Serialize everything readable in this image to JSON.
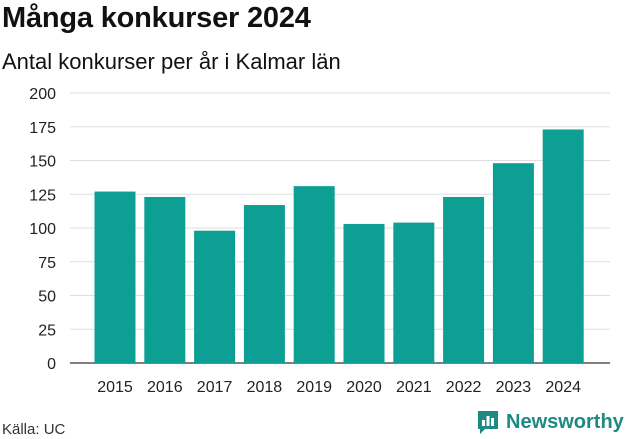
{
  "header": {
    "title": "Många konkurser 2024",
    "subtitle": "Antal konkurser per år i Kalmar län"
  },
  "footer": {
    "source": "Källa: UC",
    "brand": "Newsworthy",
    "brand_color": "#1d8a84",
    "brand_icon": "bar-chart-speech-icon"
  },
  "chart_data": {
    "type": "bar",
    "categories": [
      "2015",
      "2016",
      "2017",
      "2018",
      "2019",
      "2020",
      "2021",
      "2022",
      "2023",
      "2024"
    ],
    "values": [
      127,
      123,
      98,
      117,
      131,
      103,
      104,
      123,
      148,
      173
    ],
    "yticks": [
      0,
      25,
      50,
      75,
      100,
      125,
      150,
      175,
      200
    ],
    "ylim": [
      0,
      200
    ],
    "grid": true,
    "legend": false,
    "bar_color": "#0e9f94",
    "title": "",
    "xlabel": "",
    "ylabel": ""
  }
}
